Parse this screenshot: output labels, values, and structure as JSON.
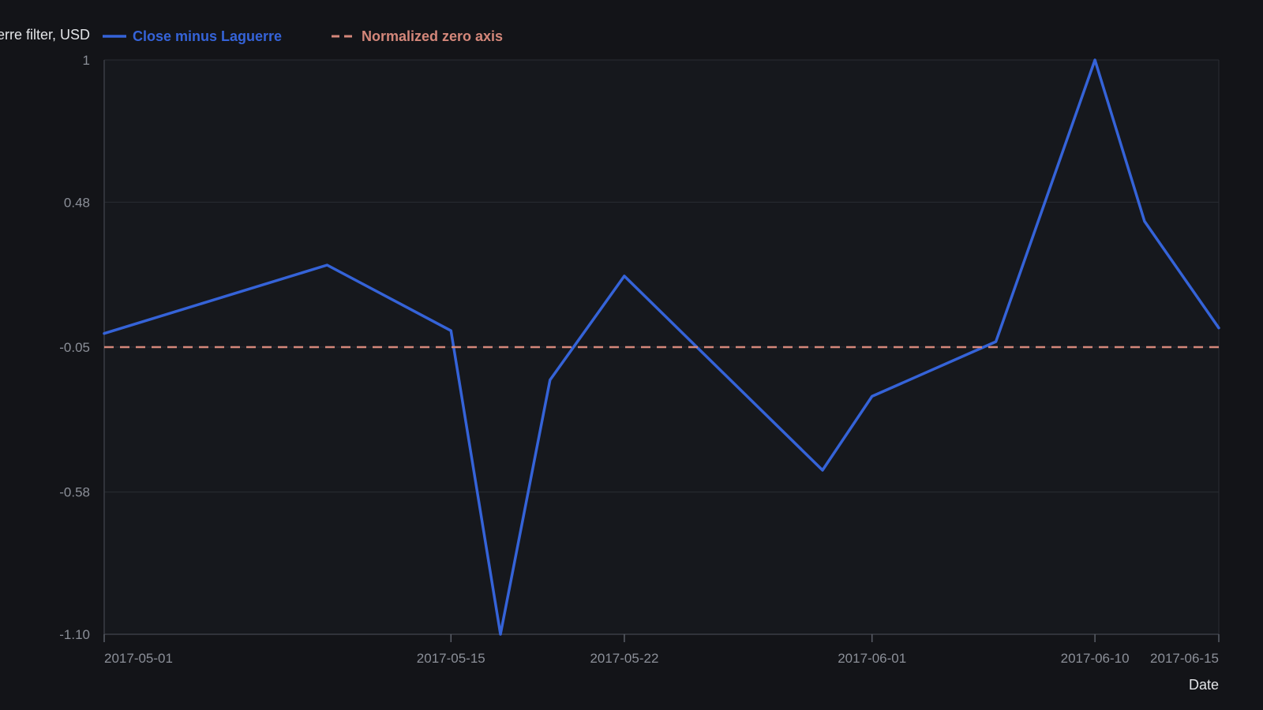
{
  "chart_data": {
    "type": "line",
    "title": "",
    "xlabel": "Date",
    "ylabel": "Close minus Laguerre filter, USD",
    "x_tick_labels": [
      "2017-05-01",
      "2017-05-15",
      "2017-05-22",
      "2017-06-01",
      "2017-06-10",
      "2017-06-15"
    ],
    "y_tick_labels": [
      "1",
      "0.48",
      "-0.05",
      "-0.58",
      "-1.10"
    ],
    "y_ticks": [
      1,
      0.48,
      -0.05,
      -0.58,
      -1.1
    ],
    "ylim": [
      -1.1,
      1
    ],
    "xlim": [
      "2017-05-01",
      "2017-06-15"
    ],
    "grid": true,
    "legend_position": "top-left",
    "series": [
      {
        "name": "Close minus Laguerre",
        "color": "#3563d8",
        "style": "solid",
        "x": [
          "2017-05-01",
          "2017-05-10",
          "2017-05-15",
          "2017-05-17",
          "2017-05-19",
          "2017-05-22",
          "2017-05-30",
          "2017-06-01",
          "2017-06-06",
          "2017-06-10",
          "2017-06-12",
          "2017-06-15"
        ],
        "y": [
          0.0,
          0.25,
          0.01,
          -1.1,
          -0.17,
          0.21,
          -0.5,
          -0.23,
          -0.03,
          1.0,
          0.41,
          0.02
        ]
      },
      {
        "name": "Normalized zero axis",
        "color": "#d4877a",
        "style": "dashed",
        "x": [
          "2017-05-01",
          "2017-06-15"
        ],
        "y": [
          -0.05,
          -0.05
        ]
      }
    ]
  }
}
